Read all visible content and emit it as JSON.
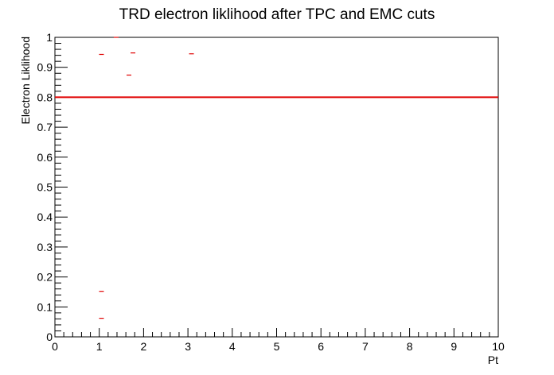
{
  "chart_data": {
    "type": "scatter",
    "title": "TRD electron liklihood after TPC and EMC cuts",
    "xlabel": "Pt",
    "ylabel": "Electron Liklihood",
    "xlim": [
      0,
      10
    ],
    "ylim": [
      0,
      1
    ],
    "x_ticks": [
      "0",
      "1",
      "2",
      "3",
      "4",
      "5",
      "6",
      "7",
      "8",
      "9",
      "10"
    ],
    "y_ticks": [
      "0",
      "0.1",
      "0.2",
      "0.3",
      "0.4",
      "0.5",
      "0.6",
      "0.7",
      "0.8",
      "0.9",
      "1"
    ],
    "grid": false,
    "cut_line": {
      "y": 0.8,
      "color": "#e00000"
    },
    "marker_color": "#e00000",
    "series": [
      {
        "points": [
          {
            "x": 1.05,
            "y": 0.943
          },
          {
            "x": 1.05,
            "y": 0.152
          },
          {
            "x": 1.05,
            "y": 0.062
          },
          {
            "x": 1.38,
            "y": 1.0
          },
          {
            "x": 1.67,
            "y": 0.874
          },
          {
            "x": 1.76,
            "y": 0.948
          },
          {
            "x": 3.08,
            "y": 0.945
          }
        ]
      }
    ]
  }
}
